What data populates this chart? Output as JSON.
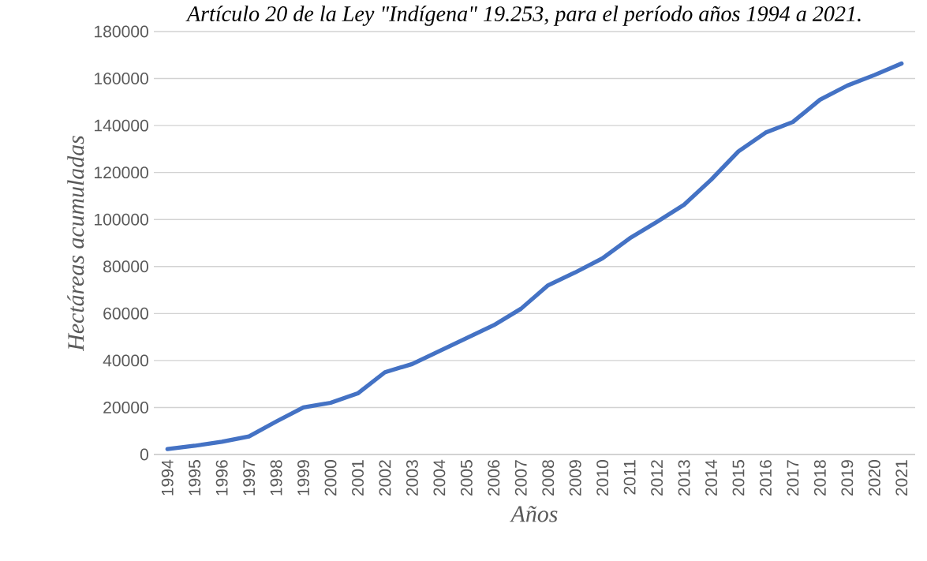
{
  "chart_data": {
    "type": "line",
    "title": "Artículo 20 de la Ley \"Indígena\" 19.253, para el período años 1994 a 2021.",
    "xlabel": "Años",
    "ylabel": "Hectáreas acumuladas",
    "categories": [
      "1994",
      "1995",
      "1996",
      "1997",
      "1998",
      "1999",
      "2000",
      "2001",
      "2002",
      "2003",
      "2004",
      "2005",
      "2006",
      "2007",
      "2008",
      "2009",
      "2010",
      "2011",
      "2012",
      "2013",
      "2014",
      "2015",
      "2016",
      "2017",
      "2018",
      "2019",
      "2020",
      "2021"
    ],
    "series": [
      {
        "color": "#4472c4",
        "values": [
          2300,
          3700,
          5400,
          7700,
          14000,
          20000,
          22000,
          26000,
          35000,
          38500,
          44000,
          49500,
          55000,
          62000,
          72000,
          77500,
          83500,
          92000,
          99000,
          106300,
          117000,
          129000,
          137000,
          141500,
          151000,
          157000,
          161500,
          166400
        ]
      }
    ],
    "ylim": [
      0,
      180000
    ],
    "yticks": [
      0,
      20000,
      40000,
      60000,
      80000,
      100000,
      120000,
      140000,
      160000,
      180000
    ],
    "grid": "y",
    "marker": "none",
    "line_style": "solid"
  }
}
